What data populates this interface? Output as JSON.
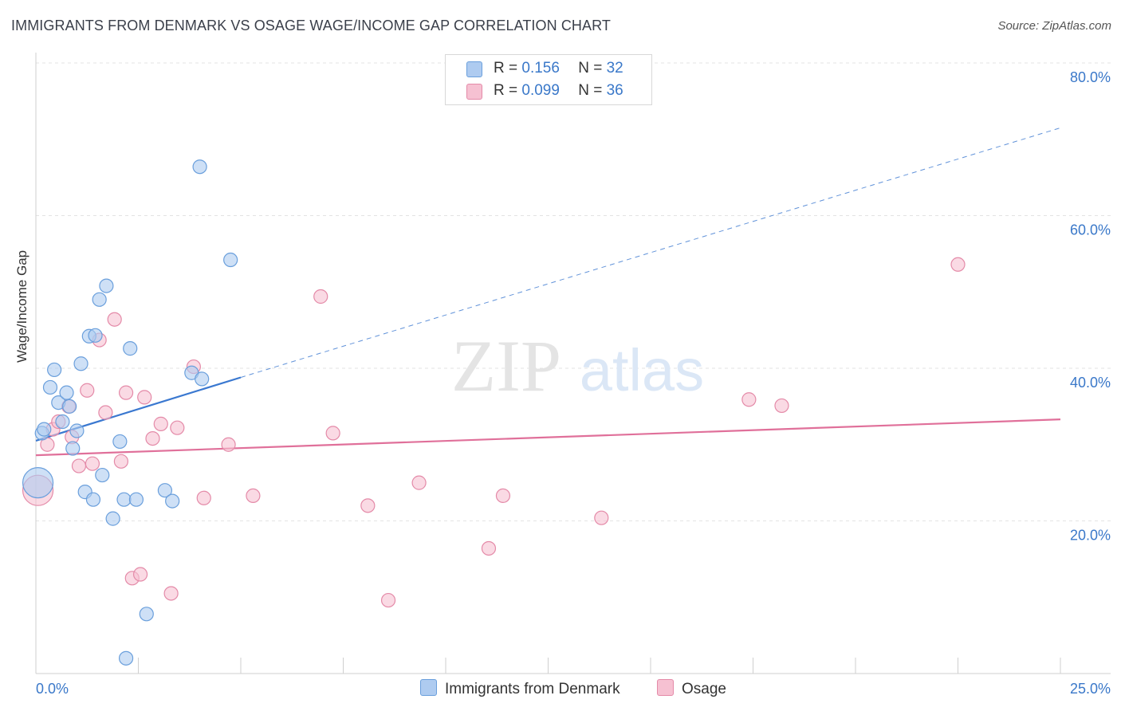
{
  "header": {
    "title": "IMMIGRANTS FROM DENMARK VS OSAGE WAGE/INCOME GAP CORRELATION CHART",
    "source": "Source: ZipAtlas.com"
  },
  "watermark": {
    "zip": "ZIP",
    "atlas": "atlas"
  },
  "legend": {
    "rows": [
      {
        "r_label": "R = ",
        "r_value": "0.156",
        "n_label": "N = ",
        "n_value": "32"
      },
      {
        "r_label": "R = ",
        "r_value": "0.099",
        "n_label": "N = ",
        "n_value": "36"
      }
    ]
  },
  "colors": {
    "blue_fill": "#aecbf0",
    "blue_stroke": "#6a9fdc",
    "blue_line": "#3a78d0",
    "pink_fill": "#f6c1d2",
    "pink_stroke": "#e48aa8",
    "pink_line": "#e0709a",
    "grid": "#e3e3e3",
    "axis_text": "#3a78c9"
  },
  "chart_data": {
    "type": "scatter",
    "title": "IMMIGRANTS FROM DENMARK VS OSAGE WAGE/INCOME GAP CORRELATION CHART",
    "xlabel": "",
    "ylabel": "Wage/Income Gap",
    "xlim": [
      0,
      25
    ],
    "ylim": [
      0,
      80
    ],
    "x_tick_labels": [
      "0.0%",
      "25.0%"
    ],
    "y_ticks": [
      20,
      40,
      60,
      80
    ],
    "y_tick_labels": [
      "20.0%",
      "40.0%",
      "60.0%",
      "80.0%"
    ],
    "legend_position": "top-center",
    "series": [
      {
        "name": "Immigrants from Denmark",
        "color": "blue",
        "R": 0.156,
        "N": 32,
        "trend": {
          "x0": 0.0,
          "y0": 30.5,
          "x1": 5.0,
          "y1": 38.8,
          "dash_x1": 25.0,
          "dash_y1": 71.5
        },
        "points": [
          {
            "x": 0.05,
            "y": 25.0,
            "big": true
          },
          {
            "x": 0.15,
            "y": 31.5
          },
          {
            "x": 0.2,
            "y": 32.0
          },
          {
            "x": 0.35,
            "y": 37.5
          },
          {
            "x": 0.45,
            "y": 39.8
          },
          {
            "x": 0.55,
            "y": 35.5
          },
          {
            "x": 0.65,
            "y": 33.0
          },
          {
            "x": 0.75,
            "y": 36.8
          },
          {
            "x": 0.82,
            "y": 35.0
          },
          {
            "x": 0.9,
            "y": 29.5
          },
          {
            "x": 1.0,
            "y": 31.8
          },
          {
            "x": 1.1,
            "y": 40.6
          },
          {
            "x": 1.2,
            "y": 23.8
          },
          {
            "x": 1.3,
            "y": 44.2
          },
          {
            "x": 1.4,
            "y": 22.8
          },
          {
            "x": 1.45,
            "y": 44.3
          },
          {
            "x": 1.55,
            "y": 49.0
          },
          {
            "x": 1.62,
            "y": 26.0
          },
          {
            "x": 1.72,
            "y": 50.8
          },
          {
            "x": 1.88,
            "y": 20.3
          },
          {
            "x": 2.05,
            "y": 30.4
          },
          {
            "x": 2.15,
            "y": 22.8
          },
          {
            "x": 2.3,
            "y": 42.6
          },
          {
            "x": 2.45,
            "y": 22.8
          },
          {
            "x": 2.2,
            "y": 2.0
          },
          {
            "x": 2.7,
            "y": 7.8
          },
          {
            "x": 3.15,
            "y": 24.0
          },
          {
            "x": 3.33,
            "y": 22.6
          },
          {
            "x": 3.8,
            "y": 39.4
          },
          {
            "x": 4.0,
            "y": 66.4
          },
          {
            "x": 4.05,
            "y": 38.6
          },
          {
            "x": 4.75,
            "y": 54.2
          }
        ]
      },
      {
        "name": "Osage",
        "color": "pink",
        "R": 0.099,
        "N": 36,
        "trend": {
          "x0": 0.0,
          "y0": 28.6,
          "x1": 25.0,
          "y1": 33.3
        },
        "points": [
          {
            "x": 0.05,
            "y": 24.0,
            "big": true
          },
          {
            "x": 0.28,
            "y": 30.0
          },
          {
            "x": 0.42,
            "y": 32.0
          },
          {
            "x": 0.55,
            "y": 33.0
          },
          {
            "x": 0.8,
            "y": 35.0
          },
          {
            "x": 0.88,
            "y": 31.0
          },
          {
            "x": 1.05,
            "y": 27.2
          },
          {
            "x": 1.25,
            "y": 37.1
          },
          {
            "x": 1.38,
            "y": 27.5
          },
          {
            "x": 1.55,
            "y": 43.7
          },
          {
            "x": 1.7,
            "y": 34.2
          },
          {
            "x": 1.92,
            "y": 46.4
          },
          {
            "x": 2.08,
            "y": 27.8
          },
          {
            "x": 2.2,
            "y": 36.8
          },
          {
            "x": 2.35,
            "y": 12.5
          },
          {
            "x": 2.55,
            "y": 13.0
          },
          {
            "x": 2.65,
            "y": 36.2
          },
          {
            "x": 2.85,
            "y": 30.8
          },
          {
            "x": 3.05,
            "y": 32.7
          },
          {
            "x": 3.3,
            "y": 10.5
          },
          {
            "x": 3.45,
            "y": 32.2
          },
          {
            "x": 3.85,
            "y": 40.2
          },
          {
            "x": 4.1,
            "y": 23.0
          },
          {
            "x": 4.7,
            "y": 30.0
          },
          {
            "x": 5.3,
            "y": 23.3
          },
          {
            "x": 6.95,
            "y": 49.4
          },
          {
            "x": 7.25,
            "y": 31.5
          },
          {
            "x": 8.1,
            "y": 22.0
          },
          {
            "x": 8.6,
            "y": 9.6
          },
          {
            "x": 9.35,
            "y": 25.0
          },
          {
            "x": 11.05,
            "y": 16.4
          },
          {
            "x": 11.4,
            "y": 23.3
          },
          {
            "x": 13.8,
            "y": 20.4
          },
          {
            "x": 17.4,
            "y": 35.9
          },
          {
            "x": 18.2,
            "y": 35.1
          },
          {
            "x": 22.5,
            "y": 53.6
          }
        ]
      }
    ]
  },
  "bottom_legend": [
    {
      "label": "Immigrants from Denmark"
    },
    {
      "label": "Osage"
    }
  ]
}
